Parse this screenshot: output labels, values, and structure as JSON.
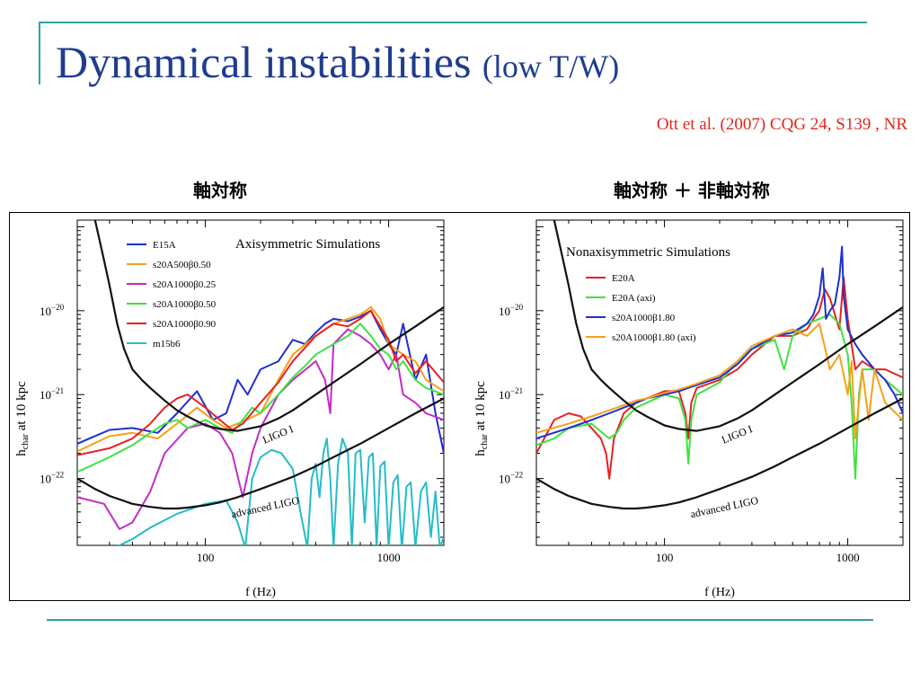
{
  "slide": {
    "title_main": "Dynamical instabilities",
    "title_sub": "(low T/W)",
    "citation": "Ott et al. (2007) CQG 24, S139 , NR"
  },
  "panel_labels": {
    "left": "軸対称",
    "right": "軸対称 ＋ 非軸対称"
  },
  "colors": {
    "title": "#1f3d8f",
    "citation": "#e1261c",
    "decor_line": "#2aa3a8"
  },
  "chart_data": [
    {
      "type": "line",
      "title": "Axisymmetric Simulations",
      "xlabel": "f (Hz)",
      "ylabel_main": "h",
      "ylabel_sub": "char",
      "ylabel_rest": " at 10 kpc",
      "xscale": "log",
      "yscale": "log",
      "xlim": [
        20,
        2000
      ],
      "ylim": [
        1.6e-23,
        1.2e-19
      ],
      "xticks": [
        {
          "value": 100,
          "label": "100"
        },
        {
          "value": 1000,
          "label": "1000"
        }
      ],
      "yticks": [
        {
          "value": 1e-22,
          "label": "10",
          "exp": "−22"
        },
        {
          "value": 1e-21,
          "label": "10",
          "exp": "−21"
        },
        {
          "value": 1e-20,
          "label": "10",
          "exp": "−20"
        }
      ],
      "legend_position": "top-left",
      "curve_labels": [
        {
          "text": "LIGO I",
          "x": 210,
          "y": 2.6e-22,
          "angle": -22
        },
        {
          "text": "advanced LIGO",
          "x": 140,
          "y": 3.4e-23,
          "angle": -12
        }
      ],
      "series": [
        {
          "name": "E15A",
          "color": "#1f2fd0",
          "legend": true,
          "x": [
            20,
            30,
            40,
            55,
            70,
            90,
            110,
            130,
            150,
            170,
            200,
            250,
            300,
            350,
            400,
            450,
            500,
            600,
            700,
            800,
            900,
            1000,
            1100,
            1200,
            1400,
            1600,
            1800,
            2000
          ],
          "y": [
            2.6e-22,
            3.8e-22,
            4e-22,
            3.5e-22,
            6e-22,
            1.1e-21,
            5e-22,
            6e-22,
            1.5e-21,
            1e-21,
            2e-21,
            2.5e-21,
            4.5e-21,
            4e-21,
            5.5e-21,
            7e-21,
            8e-21,
            7.5e-21,
            8.5e-21,
            1e-20,
            6e-21,
            4e-21,
            3e-21,
            7e-21,
            1.5e-21,
            3e-21,
            6e-22,
            2e-22
          ]
        },
        {
          "name": "s20A500β0.50",
          "color": "#f5a01a",
          "legend": true,
          "x": [
            20,
            30,
            40,
            55,
            70,
            90,
            110,
            130,
            150,
            200,
            250,
            300,
            400,
            500,
            600,
            700,
            800,
            900,
            1000,
            1200,
            1400,
            1600,
            2000
          ],
          "y": [
            2.1e-22,
            3.2e-22,
            3.5e-22,
            3e-22,
            4.5e-22,
            7e-22,
            5e-22,
            4e-22,
            4.5e-22,
            6e-22,
            1.5e-21,
            3e-21,
            5e-21,
            7e-21,
            8e-21,
            9e-21,
            1.1e-20,
            8e-21,
            4e-21,
            3e-21,
            2.5e-21,
            1.5e-21,
            1.1e-21
          ]
        },
        {
          "name": "s20A1000β0.25",
          "color": "#c42ac9",
          "legend": true,
          "x": [
            20,
            28,
            34,
            40,
            50,
            60,
            80,
            100,
            120,
            140,
            160,
            180,
            200,
            250,
            300,
            400,
            450,
            480,
            500,
            600,
            700,
            800,
            900,
            1000,
            1100,
            1200,
            1400,
            1600,
            2000
          ],
          "y": [
            6e-23,
            5e-23,
            2.5e-23,
            3e-23,
            7e-23,
            2e-22,
            4e-22,
            4.5e-22,
            3.5e-22,
            2e-22,
            6e-23,
            2e-22,
            4e-22,
            1e-21,
            1.5e-21,
            2.5e-21,
            1.5e-21,
            6e-22,
            4e-21,
            6e-21,
            5e-21,
            4e-21,
            3e-21,
            2e-21,
            3e-21,
            1e-21,
            8e-22,
            6e-22,
            5e-22
          ]
        },
        {
          "name": "s20A1000β0.50",
          "color": "#3fe23f",
          "legend": true,
          "x": [
            20,
            30,
            40,
            50,
            60,
            70,
            80,
            100,
            120,
            140,
            160,
            180,
            200,
            250,
            300,
            350,
            400,
            500,
            600,
            700,
            800,
            900,
            1000,
            1100,
            1200,
            1400,
            1600,
            2000
          ],
          "y": [
            1.2e-22,
            1.8e-22,
            2.5e-22,
            3.5e-22,
            4.5e-22,
            5e-22,
            4e-22,
            5e-22,
            4e-22,
            3.5e-22,
            5e-22,
            7e-22,
            6e-22,
            1e-21,
            1.6e-21,
            2.2e-21,
            3e-21,
            4e-21,
            5e-21,
            7e-21,
            5e-21,
            3.5e-21,
            3e-21,
            2e-21,
            2.5e-21,
            1.5e-21,
            1.2e-21,
            1e-21
          ]
        },
        {
          "name": "s20A1000β0.90",
          "color": "#e52222",
          "legend": true,
          "x": [
            20,
            30,
            40,
            50,
            60,
            70,
            80,
            100,
            120,
            140,
            160,
            200,
            250,
            300,
            400,
            500,
            600,
            700,
            800,
            900,
            1000,
            1100,
            1200,
            1400,
            1600,
            2000
          ],
          "y": [
            1.9e-22,
            2.3e-22,
            3e-22,
            4.5e-22,
            7e-22,
            9e-22,
            1e-21,
            7e-22,
            5e-22,
            3.8e-22,
            4.5e-22,
            8e-22,
            1.4e-21,
            2.5e-21,
            5e-21,
            7e-21,
            6.5e-21,
            8e-21,
            1e-20,
            6.5e-21,
            4.5e-21,
            2.5e-21,
            3e-21,
            1.8e-21,
            2.5e-21,
            1.4e-21
          ]
        },
        {
          "name": "m15b6",
          "color": "#26bcc7",
          "legend": true,
          "x": [
            25,
            32,
            40,
            50,
            70,
            100,
            130,
            150,
            165,
            180,
            200,
            230,
            260,
            300,
            330,
            360,
            380,
            400,
            420,
            440,
            460,
            480,
            500,
            530,
            560,
            600,
            630,
            660,
            700,
            740,
            780,
            820,
            860,
            900,
            950,
            1000,
            1060,
            1120,
            1180,
            1250,
            1320,
            1400,
            1500,
            1600,
            1700,
            1800,
            1900,
            2000
          ],
          "y": [
            1.2e-23,
            1.5e-23,
            1.9e-23,
            2.6e-23,
            3.8e-23,
            5e-23,
            5.5e-23,
            3e-23,
            1.5e-23,
            1e-22,
            1.8e-22,
            2.2e-22,
            2e-22,
            1.3e-22,
            4e-23,
            1.5e-23,
            1e-22,
            1.5e-22,
            6e-23,
            2e-22,
            3e-22,
            1e-22,
            1.5e-23,
            1.5e-22,
            3e-22,
            2e-22,
            1.5e-23,
            2e-22,
            2.2e-22,
            3e-23,
            1.8e-22,
            2e-22,
            1.5e-23,
            1.4e-22,
            1.6e-22,
            1.5e-23,
            9e-23,
            1.1e-22,
            1.4e-23,
            8e-23,
            9e-23,
            1.5e-23,
            7e-23,
            9e-23,
            2e-23,
            7e-23,
            1.5e-23,
            2e-23
          ]
        },
        {
          "name": "LIGO I",
          "color": "#111111",
          "legend": false,
          "x": [
            25,
            28,
            30,
            33,
            36,
            40,
            45,
            50,
            60,
            70,
            80,
            100,
            120,
            150,
            200,
            250,
            300,
            400,
            500,
            700,
            1000,
            1400,
            2000
          ],
          "y": [
            1.2e-19,
            4e-20,
            2e-20,
            7e-21,
            3.5e-21,
            2e-21,
            1.5e-21,
            1.2e-21,
            8.5e-22,
            6.5e-22,
            5.5e-22,
            4.3e-22,
            3.9e-22,
            3.7e-22,
            4.2e-22,
            5.2e-22,
            6.5e-22,
            1e-21,
            1.4e-21,
            2.3e-21,
            4e-21,
            6.5e-21,
            1.1e-20
          ]
        },
        {
          "name": "advanced LIGO",
          "color": "#111111",
          "legend": false,
          "x": [
            20,
            25,
            30,
            40,
            50,
            60,
            70,
            80,
            100,
            120,
            150,
            200,
            250,
            300,
            400,
            500,
            700,
            1000,
            1400,
            2000
          ],
          "y": [
            1e-22,
            7.5e-23,
            6.2e-23,
            5e-23,
            4.6e-23,
            4.4e-23,
            4.4e-23,
            4.5e-23,
            4.8e-23,
            5.2e-23,
            6e-23,
            7.5e-23,
            9e-23,
            1.05e-22,
            1.4e-22,
            1.8e-22,
            2.6e-22,
            4e-22,
            6e-22,
            9e-22
          ]
        }
      ]
    },
    {
      "type": "line",
      "title": "Nonaxisymmetric Simulations",
      "xlabel": "f (Hz)",
      "ylabel_main": "h",
      "ylabel_sub": "char",
      "ylabel_rest": " at 10 kpc",
      "xscale": "log",
      "yscale": "log",
      "xlim": [
        20,
        2000
      ],
      "ylim": [
        1.6e-23,
        1.2e-19
      ],
      "xticks": [
        {
          "value": 100,
          "label": "100"
        },
        {
          "value": 1000,
          "label": "1000"
        }
      ],
      "yticks": [
        {
          "value": 1e-22,
          "label": "10",
          "exp": "−22"
        },
        {
          "value": 1e-21,
          "label": "10",
          "exp": "−21"
        },
        {
          "value": 1e-20,
          "label": "10",
          "exp": "−20"
        }
      ],
      "legend_position": "top-left",
      "curve_labels": [
        {
          "text": "LIGO I",
          "x": 210,
          "y": 2.6e-22,
          "angle": -22
        },
        {
          "text": "advanced LIGO",
          "x": 140,
          "y": 3.4e-23,
          "angle": -12
        }
      ],
      "series": [
        {
          "name": "E20A",
          "color": "#e52222",
          "legend": true,
          "x": [
            20,
            25,
            30,
            35,
            40,
            45,
            48,
            50,
            53,
            60,
            70,
            80,
            100,
            120,
            130,
            135,
            140,
            150,
            200,
            250,
            300,
            400,
            500,
            600,
            650,
            700,
            750,
            800,
            900,
            950,
            1000,
            1100,
            1200,
            1400,
            1600,
            2000
          ],
          "y": [
            2e-22,
            5e-22,
            6e-22,
            5.5e-22,
            4e-22,
            3e-22,
            2e-22,
            1e-22,
            3e-22,
            6e-22,
            8e-22,
            9e-22,
            1.1e-21,
            1.1e-21,
            6e-22,
            3e-22,
            8e-22,
            1.2e-21,
            1.5e-21,
            2e-21,
            3e-21,
            5e-21,
            5e-21,
            6e-21,
            8e-21,
            1e-20,
            1.8e-20,
            1.4e-20,
            6e-21,
            2.5e-20,
            8e-21,
            2e-21,
            2.5e-21,
            2e-21,
            2e-21,
            1.6e-21
          ]
        },
        {
          "name": "E20A (axi)",
          "color": "#3fe23f",
          "legend": true,
          "x": [
            20,
            25,
            30,
            40,
            50,
            55,
            60,
            70,
            80,
            100,
            120,
            130,
            135,
            140,
            150,
            200,
            250,
            300,
            400,
            450,
            500,
            600,
            700,
            800,
            900,
            1000,
            1050,
            1100,
            1150,
            1200,
            1400,
            1600,
            2000
          ],
          "y": [
            2.5e-22,
            3e-22,
            4e-22,
            4.5e-22,
            3e-22,
            3.5e-22,
            5e-22,
            7e-22,
            8e-22,
            1e-21,
            9e-22,
            5e-22,
            1.5e-22,
            5e-22,
            1e-21,
            1.4e-21,
            2.5e-21,
            3.5e-21,
            4.5e-21,
            2e-21,
            5e-21,
            7e-21,
            8e-21,
            9e-21,
            7e-21,
            3e-21,
            8e-22,
            1e-22,
            1e-21,
            2e-21,
            2e-21,
            1.5e-21,
            1e-21
          ]
        },
        {
          "name": "s20A1000β1.80",
          "color": "#1f2fd0",
          "legend": true,
          "x": [
            20,
            30,
            40,
            50,
            60,
            70,
            80,
            100,
            120,
            150,
            200,
            250,
            300,
            400,
            500,
            600,
            650,
            700,
            730,
            760,
            800,
            850,
            900,
            930,
            950,
            1000,
            1100,
            1200,
            1400,
            1600,
            1800,
            2000
          ],
          "y": [
            3e-22,
            4e-22,
            5e-22,
            6e-22,
            7e-22,
            8e-22,
            9e-22,
            1e-21,
            1.1e-21,
            1.3e-21,
            1.6e-21,
            2.3e-21,
            3.5e-21,
            5e-21,
            5.5e-21,
            7e-21,
            9e-21,
            1.5e-20,
            3.2e-20,
            8e-21,
            1e-20,
            1.2e-20,
            2.5e-20,
            5.8e-20,
            1.5e-20,
            6e-21,
            4e-21,
            3e-21,
            2e-21,
            1.5e-21,
            1e-21,
            6e-22
          ]
        },
        {
          "name": "s20A1000β1.80 (axi)",
          "color": "#f5a01a",
          "legend": true,
          "x": [
            20,
            30,
            40,
            50,
            60,
            70,
            80,
            100,
            120,
            150,
            200,
            250,
            300,
            400,
            500,
            600,
            700,
            800,
            900,
            1000,
            1050,
            1100,
            1200,
            1300,
            1400,
            1600,
            2000
          ],
          "y": [
            3.5e-22,
            4.5e-22,
            5.5e-22,
            6.5e-22,
            7.5e-22,
            8.5e-22,
            9e-22,
            1.05e-21,
            1.15e-21,
            1.35e-21,
            1.7e-21,
            2.5e-21,
            3.8e-21,
            5e-21,
            6e-21,
            5e-21,
            7e-21,
            2e-21,
            3e-21,
            1e-21,
            2.5e-21,
            3e-22,
            2e-21,
            5e-22,
            2e-21,
            8e-22,
            5e-22
          ]
        },
        {
          "name": "LIGO I",
          "color": "#111111",
          "legend": false,
          "x": [
            25,
            28,
            30,
            33,
            36,
            40,
            45,
            50,
            60,
            70,
            80,
            100,
            120,
            150,
            200,
            250,
            300,
            400,
            500,
            700,
            1000,
            1400,
            2000
          ],
          "y": [
            1.2e-19,
            4e-20,
            2e-20,
            7e-21,
            3.5e-21,
            2e-21,
            1.5e-21,
            1.2e-21,
            8.5e-22,
            6.5e-22,
            5.5e-22,
            4.3e-22,
            3.9e-22,
            3.7e-22,
            4.2e-22,
            5.2e-22,
            6.5e-22,
            1e-21,
            1.4e-21,
            2.3e-21,
            4e-21,
            6.5e-21,
            1.1e-20
          ]
        },
        {
          "name": "advanced LIGO",
          "color": "#111111",
          "legend": false,
          "x": [
            20,
            25,
            30,
            40,
            50,
            60,
            70,
            80,
            100,
            120,
            150,
            200,
            250,
            300,
            400,
            500,
            700,
            1000,
            1400,
            2000
          ],
          "y": [
            1e-22,
            7.5e-23,
            6.2e-23,
            5e-23,
            4.6e-23,
            4.4e-23,
            4.4e-23,
            4.5e-23,
            4.8e-23,
            5.2e-23,
            6e-23,
            7.5e-23,
            9e-23,
            1.05e-22,
            1.4e-22,
            1.8e-22,
            2.6e-22,
            4e-22,
            6e-22,
            9e-22
          ]
        }
      ]
    }
  ]
}
